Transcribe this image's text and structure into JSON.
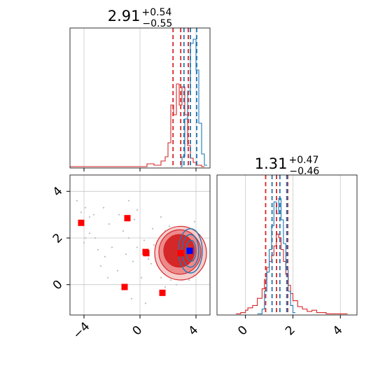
{
  "chart_data": [
    {
      "type": "histogram",
      "panel": "top-left marginal",
      "title": {
        "base": "2.91",
        "plus": "+0.54",
        "minus": "−0.55"
      },
      "xlim": [
        -5,
        5
      ],
      "grid": true,
      "series": [
        {
          "color": "#d62728",
          "bins": [
            [
              -5,
              0.01
            ],
            [
              -4,
              0.01
            ],
            [
              -3,
              0.01
            ],
            [
              -2,
              0.01
            ],
            [
              -1,
              0.01
            ],
            [
              0,
              0.01
            ],
            [
              0.5,
              0.03
            ],
            [
              1,
              0.02
            ],
            [
              1.5,
              0.05
            ],
            [
              1.8,
              0.08
            ],
            [
              2.0,
              0.18
            ],
            [
              2.2,
              0.45
            ],
            [
              2.4,
              0.38
            ],
            [
              2.6,
              0.6
            ],
            [
              2.8,
              0.45
            ],
            [
              3.0,
              0.58
            ],
            [
              3.2,
              0.38
            ],
            [
              3.4,
              0.16
            ],
            [
              3.6,
              0.07
            ],
            [
              3.8,
              0.04
            ],
            [
              4.0,
              0.02
            ],
            [
              4.4,
              0.01
            ]
          ]
        },
        {
          "color": "#1f77b4",
          "bins": [
            [
              2.9,
              0.01
            ],
            [
              3.0,
              0.08
            ],
            [
              3.2,
              0.35
            ],
            [
              3.4,
              0.55
            ],
            [
              3.6,
              0.89
            ],
            [
              3.8,
              0.92
            ],
            [
              4.0,
              0.7
            ],
            [
              4.2,
              0.32
            ],
            [
              4.4,
              0.1
            ],
            [
              4.6,
              0.02
            ]
          ]
        }
      ],
      "vlines": [
        {
          "x": 2.36,
          "color": "#d62728"
        },
        {
          "x": 2.91,
          "color": "#d62728"
        },
        {
          "x": 3.45,
          "color": "#d62728"
        },
        {
          "x": 3.14,
          "color": "#1f77b4"
        },
        {
          "x": 3.6,
          "color": "#1f77b4"
        },
        {
          "x": 4.05,
          "color": "#1f77b4"
        }
      ],
      "ticks_x": []
    },
    {
      "type": "histogram",
      "panel": "bottom-right marginal",
      "title": {
        "base": "1.31",
        "plus": "+0.47",
        "minus": "−0.46"
      },
      "xlim": [
        -1.2,
        4.7
      ],
      "grid": true,
      "xticks": [
        "0",
        "2",
        "4"
      ],
      "series": [
        {
          "color": "#d62728",
          "bins": [
            [
              -0.4,
              0.01
            ],
            [
              -0.2,
              0.02
            ],
            [
              0,
              0.04
            ],
            [
              0.1,
              0.06
            ],
            [
              0.3,
              0.08
            ],
            [
              0.5,
              0.14
            ],
            [
              0.7,
              0.22
            ],
            [
              0.8,
              0.3
            ],
            [
              0.9,
              0.4
            ],
            [
              1.0,
              0.45
            ],
            [
              1.1,
              0.5
            ],
            [
              1.2,
              0.58
            ],
            [
              1.3,
              0.68
            ],
            [
              1.4,
              0.65
            ],
            [
              1.5,
              0.55
            ],
            [
              1.6,
              0.45
            ],
            [
              1.7,
              0.34
            ],
            [
              1.8,
              0.25
            ],
            [
              1.9,
              0.18
            ],
            [
              2.0,
              0.12
            ],
            [
              2.2,
              0.07
            ],
            [
              2.4,
              0.05
            ],
            [
              2.6,
              0.03
            ],
            [
              2.8,
              0.04
            ],
            [
              3.0,
              0.02
            ],
            [
              3.4,
              0.01
            ],
            [
              3.8,
              0.01
            ],
            [
              4.2,
              0.01
            ]
          ]
        },
        {
          "color": "#1f77b4",
          "bins": [
            [
              0.5,
              0.01
            ],
            [
              0.7,
              0.05
            ],
            [
              0.8,
              0.2
            ],
            [
              0.9,
              0.36
            ],
            [
              1.0,
              0.55
            ],
            [
              1.1,
              0.75
            ],
            [
              1.2,
              0.95
            ],
            [
              1.3,
              0.85
            ],
            [
              1.4,
              0.98
            ],
            [
              1.5,
              0.8
            ],
            [
              1.6,
              0.6
            ],
            [
              1.7,
              0.38
            ],
            [
              1.8,
              0.2
            ],
            [
              1.9,
              0.08
            ],
            [
              2.0,
              0.02
            ]
          ]
        }
      ],
      "vlines": [
        {
          "x": 0.85,
          "color": "#d62728"
        },
        {
          "x": 1.31,
          "color": "#d62728"
        },
        {
          "x": 1.78,
          "color": "#d62728"
        },
        {
          "x": 1.12,
          "color": "#1f77b4"
        },
        {
          "x": 1.45,
          "color": "#1f77b4"
        },
        {
          "x": 1.74,
          "color": "#1f77b4"
        }
      ]
    },
    {
      "type": "scatter",
      "panel": "bottom-left joint",
      "xlim": [
        -5,
        5
      ],
      "ylim": [
        -1.3,
        4.7
      ],
      "grid": true,
      "xticks": [
        "−4",
        "0",
        "4"
      ],
      "yticks": [
        "0",
        "2",
        "4"
      ],
      "red_markers": [
        {
          "x": -4.2,
          "y": 2.65
        },
        {
          "x": -0.9,
          "y": 2.85
        },
        {
          "x": 0.4,
          "y": 1.4
        },
        {
          "x": 0.45,
          "y": 1.35
        },
        {
          "x": -1.1,
          "y": -0.1
        },
        {
          "x": 1.6,
          "y": -0.35
        },
        {
          "x": 2.9,
          "y": 1.35
        }
      ],
      "blue_markers": [
        {
          "x": 3.55,
          "y": 1.45
        }
      ],
      "red_contours": [
        {
          "cx": 2.9,
          "cy": 1.35,
          "rx": 1.85,
          "ry": 1.15,
          "fill": "#f6cccc",
          "level": 1
        },
        {
          "cx": 2.85,
          "cy": 1.4,
          "rx": 1.5,
          "ry": 0.95,
          "fill": "#ec8a8b",
          "level": 2
        },
        {
          "cx": 2.8,
          "cy": 1.45,
          "rx": 1.1,
          "ry": 0.7,
          "fill": "#d62728",
          "level": 3
        }
      ],
      "blue_contours": [
        {
          "cx": 3.6,
          "cy": 1.45,
          "rx": 0.85,
          "ry": 0.95
        },
        {
          "cx": 3.6,
          "cy": 1.45,
          "rx": 0.6,
          "ry": 0.7
        },
        {
          "cx": 3.65,
          "cy": 1.45,
          "rx": 0.35,
          "ry": 0.45
        }
      ],
      "scatter_points": [
        [
          -4.5,
          3.6
        ],
        [
          -4.2,
          3.1
        ],
        [
          -3.9,
          3.3
        ],
        [
          -3.6,
          2.9
        ],
        [
          -3.3,
          3.0
        ],
        [
          -3.6,
          2.2
        ],
        [
          -3.2,
          2.0
        ],
        [
          -3.9,
          2.0
        ],
        [
          -4.0,
          1.8
        ],
        [
          -2.6,
          3.3
        ],
        [
          -2.2,
          2.6
        ],
        [
          -1.5,
          3.0
        ],
        [
          -1.2,
          2.3
        ],
        [
          -0.8,
          2.0
        ],
        [
          -0.4,
          2.8
        ],
        [
          -0.2,
          1.6
        ],
        [
          0.3,
          1.9
        ],
        [
          0.6,
          1.1
        ],
        [
          0.8,
          0.9
        ],
        [
          -0.5,
          1.0
        ],
        [
          -1.0,
          1.3
        ],
        [
          -2.0,
          1.6
        ],
        [
          -2.5,
          1.2
        ],
        [
          1.0,
          1.7
        ],
        [
          1.3,
          1.5
        ],
        [
          1.4,
          0.7
        ],
        [
          1.5,
          0.3
        ],
        [
          1.8,
          -0.1
        ],
        [
          0.4,
          -0.8
        ],
        [
          -0.6,
          -0.6
        ],
        [
          -2.8,
          0.8
        ],
        [
          -3.0,
          1.5
        ],
        [
          -2.3,
          0.3
        ],
        [
          0.9,
          2.4
        ],
        [
          1.8,
          2.3
        ],
        [
          2.1,
          2.5
        ],
        [
          3.9,
          2.7
        ],
        [
          4.0,
          2.3
        ],
        [
          3.5,
          0.2
        ],
        [
          3.8,
          0.5
        ],
        [
          4.2,
          0.9
        ],
        [
          2.2,
          0.2
        ],
        [
          2.6,
          0.0
        ],
        [
          0.1,
          0.3
        ],
        [
          -1.6,
          0.6
        ],
        [
          -0.2,
          3.2
        ],
        [
          -0.8,
          3.6
        ],
        [
          1.5,
          2.9
        ]
      ]
    }
  ]
}
